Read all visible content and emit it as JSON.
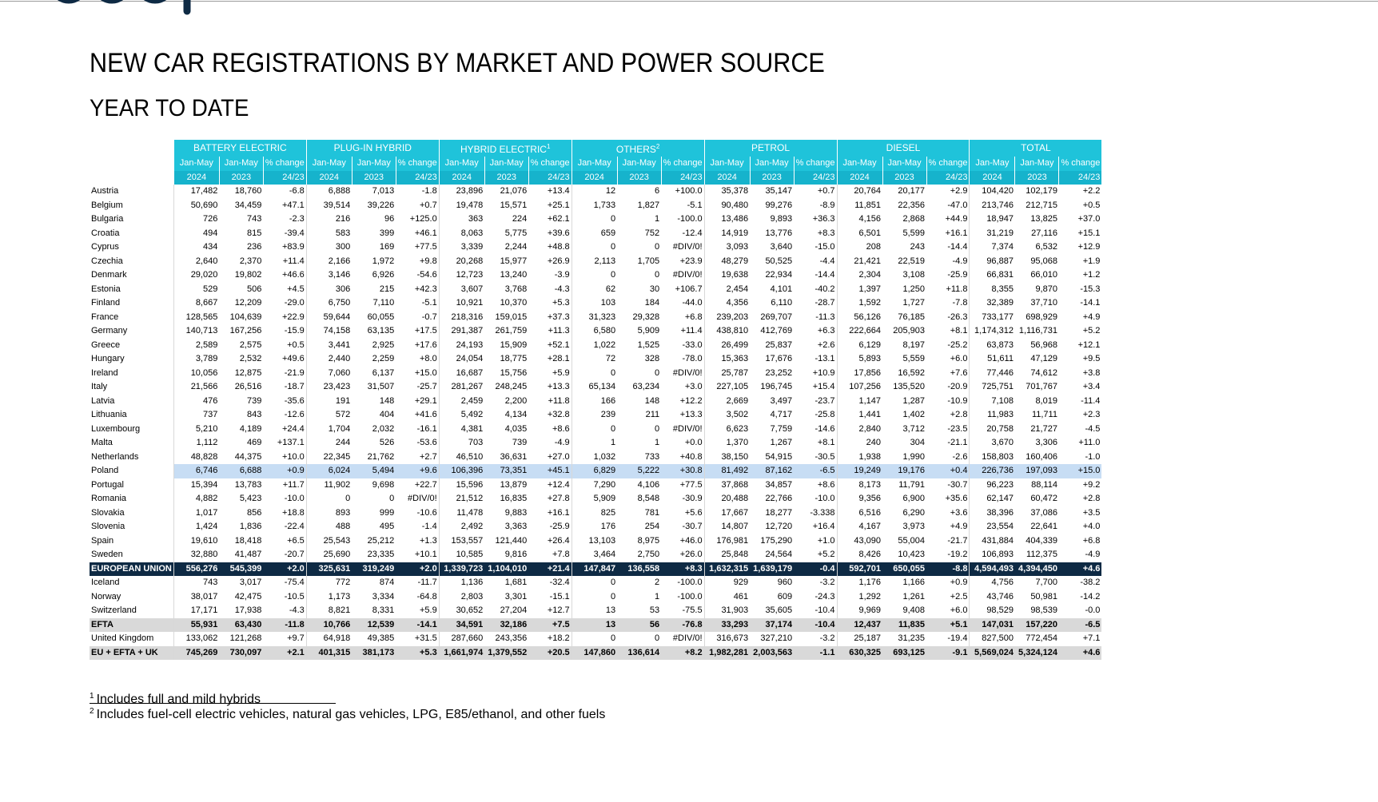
{
  "title": "NEW CAR REGISTRATIONS BY MARKET AND POWER SOURCE",
  "subtitle": "YEAR TO DATE",
  "groups": [
    "BATTERY ELECTRIC",
    "PLUG-IN HYBRID",
    "HYBRID ELECTRIC",
    "OTHERS",
    "PETROL",
    "DIESEL",
    "TOTAL"
  ],
  "group_sup": [
    "",
    "",
    "1",
    "2",
    "",
    "",
    ""
  ],
  "subheaders": {
    "period": "Jan-May",
    "change": "% change",
    "year_a": "2024",
    "year_b": "2023",
    "ratio": "24/23"
  },
  "rows": [
    {
      "name": "Austria",
      "v": [
        "17,482",
        "18,760",
        "-6.8",
        "6,888",
        "7,013",
        "-1.8",
        "23,896",
        "21,076",
        "+13.4",
        "12",
        "6",
        "+100.0",
        "35,378",
        "35,147",
        "+0.7",
        "20,764",
        "20,177",
        "+2.9",
        "104,420",
        "102,179",
        "+2.2"
      ]
    },
    {
      "name": "Belgium",
      "v": [
        "50,690",
        "34,459",
        "+47.1",
        "39,514",
        "39,226",
        "+0.7",
        "19,478",
        "15,571",
        "+25.1",
        "1,733",
        "1,827",
        "-5.1",
        "90,480",
        "99,276",
        "-8.9",
        "11,851",
        "22,356",
        "-47.0",
        "213,746",
        "212,715",
        "+0.5"
      ]
    },
    {
      "name": "Bulgaria",
      "v": [
        "726",
        "743",
        "-2.3",
        "216",
        "96",
        "+125.0",
        "363",
        "224",
        "+62.1",
        "0",
        "1",
        "-100.0",
        "13,486",
        "9,893",
        "+36.3",
        "4,156",
        "2,868",
        "+44.9",
        "18,947",
        "13,825",
        "+37.0"
      ]
    },
    {
      "name": "Croatia",
      "v": [
        "494",
        "815",
        "-39.4",
        "583",
        "399",
        "+46.1",
        "8,063",
        "5,775",
        "+39.6",
        "659",
        "752",
        "-12.4",
        "14,919",
        "13,776",
        "+8.3",
        "6,501",
        "5,599",
        "+16.1",
        "31,219",
        "27,116",
        "+15.1"
      ]
    },
    {
      "name": "Cyprus",
      "v": [
        "434",
        "236",
        "+83.9",
        "300",
        "169",
        "+77.5",
        "3,339",
        "2,244",
        "+48.8",
        "0",
        "0",
        "#DIV/0!",
        "3,093",
        "3,640",
        "-15.0",
        "208",
        "243",
        "-14.4",
        "7,374",
        "6,532",
        "+12.9"
      ]
    },
    {
      "name": "Czechia",
      "v": [
        "2,640",
        "2,370",
        "+11.4",
        "2,166",
        "1,972",
        "+9.8",
        "20,268",
        "15,977",
        "+26.9",
        "2,113",
        "1,705",
        "+23.9",
        "48,279",
        "50,525",
        "-4.4",
        "21,421",
        "22,519",
        "-4.9",
        "96,887",
        "95,068",
        "+1.9"
      ]
    },
    {
      "name": "Denmark",
      "v": [
        "29,020",
        "19,802",
        "+46.6",
        "3,146",
        "6,926",
        "-54.6",
        "12,723",
        "13,240",
        "-3.9",
        "0",
        "0",
        "#DIV/0!",
        "19,638",
        "22,934",
        "-14.4",
        "2,304",
        "3,108",
        "-25.9",
        "66,831",
        "66,010",
        "+1.2"
      ]
    },
    {
      "name": "Estonia",
      "v": [
        "529",
        "506",
        "+4.5",
        "306",
        "215",
        "+42.3",
        "3,607",
        "3,768",
        "-4.3",
        "62",
        "30",
        "+106.7",
        "2,454",
        "4,101",
        "-40.2",
        "1,397",
        "1,250",
        "+11.8",
        "8,355",
        "9,870",
        "-15.3"
      ]
    },
    {
      "name": "Finland",
      "v": [
        "8,667",
        "12,209",
        "-29.0",
        "6,750",
        "7,110",
        "-5.1",
        "10,921",
        "10,370",
        "+5.3",
        "103",
        "184",
        "-44.0",
        "4,356",
        "6,110",
        "-28.7",
        "1,592",
        "1,727",
        "-7.8",
        "32,389",
        "37,710",
        "-14.1"
      ]
    },
    {
      "name": "France",
      "v": [
        "128,565",
        "104,639",
        "+22.9",
        "59,644",
        "60,055",
        "-0.7",
        "218,316",
        "159,015",
        "+37.3",
        "31,323",
        "29,328",
        "+6.8",
        "239,203",
        "269,707",
        "-11.3",
        "56,126",
        "76,185",
        "-26.3",
        "733,177",
        "698,929",
        "+4.9"
      ]
    },
    {
      "name": "Germany",
      "v": [
        "140,713",
        "167,256",
        "-15.9",
        "74,158",
        "63,135",
        "+17.5",
        "291,387",
        "261,759",
        "+11.3",
        "6,580",
        "5,909",
        "+11.4",
        "438,810",
        "412,769",
        "+6.3",
        "222,664",
        "205,903",
        "+8.1",
        "1,174,312",
        "1,116,731",
        "+5.2"
      ]
    },
    {
      "name": "Greece",
      "v": [
        "2,589",
        "2,575",
        "+0.5",
        "3,441",
        "2,925",
        "+17.6",
        "24,193",
        "15,909",
        "+52.1",
        "1,022",
        "1,525",
        "-33.0",
        "26,499",
        "25,837",
        "+2.6",
        "6,129",
        "8,197",
        "-25.2",
        "63,873",
        "56,968",
        "+12.1"
      ]
    },
    {
      "name": "Hungary",
      "v": [
        "3,789",
        "2,532",
        "+49.6",
        "2,440",
        "2,259",
        "+8.0",
        "24,054",
        "18,775",
        "+28.1",
        "72",
        "328",
        "-78.0",
        "15,363",
        "17,676",
        "-13.1",
        "5,893",
        "5,559",
        "+6.0",
        "51,611",
        "47,129",
        "+9.5"
      ]
    },
    {
      "name": "Ireland",
      "v": [
        "10,056",
        "12,875",
        "-21.9",
        "7,060",
        "6,137",
        "+15.0",
        "16,687",
        "15,756",
        "+5.9",
        "0",
        "0",
        "#DIV/0!",
        "25,787",
        "23,252",
        "+10.9",
        "17,856",
        "16,592",
        "+7.6",
        "77,446",
        "74,612",
        "+3.8"
      ]
    },
    {
      "name": "Italy",
      "v": [
        "21,566",
        "26,516",
        "-18.7",
        "23,423",
        "31,507",
        "-25.7",
        "281,267",
        "248,245",
        "+13.3",
        "65,134",
        "63,234",
        "+3.0",
        "227,105",
        "196,745",
        "+15.4",
        "107,256",
        "135,520",
        "-20.9",
        "725,751",
        "701,767",
        "+3.4"
      ]
    },
    {
      "name": "Latvia",
      "v": [
        "476",
        "739",
        "-35.6",
        "191",
        "148",
        "+29.1",
        "2,459",
        "2,200",
        "+11.8",
        "166",
        "148",
        "+12.2",
        "2,669",
        "3,497",
        "-23.7",
        "1,147",
        "1,287",
        "-10.9",
        "7,108",
        "8,019",
        "-11.4"
      ]
    },
    {
      "name": "Lithuania",
      "v": [
        "737",
        "843",
        "-12.6",
        "572",
        "404",
        "+41.6",
        "5,492",
        "4,134",
        "+32.8",
        "239",
        "211",
        "+13.3",
        "3,502",
        "4,717",
        "-25.8",
        "1,441",
        "1,402",
        "+2.8",
        "11,983",
        "11,711",
        "+2.3"
      ]
    },
    {
      "name": "Luxembourg",
      "v": [
        "5,210",
        "4,189",
        "+24.4",
        "1,704",
        "2,032",
        "-16.1",
        "4,381",
        "4,035",
        "+8.6",
        "0",
        "0",
        "#DIV/0!",
        "6,623",
        "7,759",
        "-14.6",
        "2,840",
        "3,712",
        "-23.5",
        "20,758",
        "21,727",
        "-4.5"
      ]
    },
    {
      "name": "Malta",
      "v": [
        "1,112",
        "469",
        "+137.1",
        "244",
        "526",
        "-53.6",
        "703",
        "739",
        "-4.9",
        "1",
        "1",
        "+0.0",
        "1,370",
        "1,267",
        "+8.1",
        "240",
        "304",
        "-21.1",
        "3,670",
        "3,306",
        "+11.0"
      ]
    },
    {
      "name": "Netherlands",
      "v": [
        "48,828",
        "44,375",
        "+10.0",
        "22,345",
        "21,762",
        "+2.7",
        "46,510",
        "36,631",
        "+27.0",
        "1,032",
        "733",
        "+40.8",
        "38,150",
        "54,915",
        "-30.5",
        "1,938",
        "1,990",
        "-2.6",
        "158,803",
        "160,406",
        "-1.0"
      ]
    },
    {
      "name": "Poland",
      "hl": true,
      "v": [
        "6,746",
        "6,688",
        "+0.9",
        "6,024",
        "5,494",
        "+9.6",
        "106,396",
        "73,351",
        "+45.1",
        "6,829",
        "5,222",
        "+30.8",
        "81,492",
        "87,162",
        "-6.5",
        "19,249",
        "19,176",
        "+0.4",
        "226,736",
        "197,093",
        "+15.0"
      ]
    },
    {
      "name": "Portugal",
      "v": [
        "15,394",
        "13,783",
        "+11.7",
        "11,902",
        "9,698",
        "+22.7",
        "15,596",
        "13,879",
        "+12.4",
        "7,290",
        "4,106",
        "+77.5",
        "37,868",
        "34,857",
        "+8.6",
        "8,173",
        "11,791",
        "-30.7",
        "96,223",
        "88,114",
        "+9.2"
      ]
    },
    {
      "name": "Romania",
      "v": [
        "4,882",
        "5,423",
        "-10.0",
        "0",
        "0",
        "#DIV/0!",
        "21,512",
        "16,835",
        "+27.8",
        "5,909",
        "8,548",
        "-30.9",
        "20,488",
        "22,766",
        "-10.0",
        "9,356",
        "6,900",
        "+35.6",
        "62,147",
        "60,472",
        "+2.8"
      ]
    },
    {
      "name": "Slovakia",
      "v": [
        "1,017",
        "856",
        "+18.8",
        "893",
        "999",
        "-10.6",
        "11,478",
        "9,883",
        "+16.1",
        "825",
        "781",
        "+5.6",
        "17,667",
        "18,277",
        "-3.338",
        "6,516",
        "6,290",
        "+3.6",
        "38,396",
        "37,086",
        "+3.5"
      ]
    },
    {
      "name": "Slovenia",
      "v": [
        "1,424",
        "1,836",
        "-22.4",
        "488",
        "495",
        "-1.4",
        "2,492",
        "3,363",
        "-25.9",
        "176",
        "254",
        "-30.7",
        "14,807",
        "12,720",
        "+16.4",
        "4,167",
        "3,973",
        "+4.9",
        "23,554",
        "22,641",
        "+4.0"
      ]
    },
    {
      "name": "Spain",
      "v": [
        "19,610",
        "18,418",
        "+6.5",
        "25,543",
        "25,212",
        "+1.3",
        "153,557",
        "121,440",
        "+26.4",
        "13,103",
        "8,975",
        "+46.0",
        "176,981",
        "175,290",
        "+1.0",
        "43,090",
        "55,004",
        "-21.7",
        "431,884",
        "404,339",
        "+6.8"
      ]
    },
    {
      "name": "Sweden",
      "v": [
        "32,880",
        "41,487",
        "-20.7",
        "25,690",
        "23,335",
        "+10.1",
        "10,585",
        "9,816",
        "+7.8",
        "3,464",
        "2,750",
        "+26.0",
        "25,848",
        "24,564",
        "+5.2",
        "8,426",
        "10,423",
        "-19.2",
        "106,893",
        "112,375",
        "-4.9"
      ]
    },
    {
      "name": "EUROPEAN UNION",
      "kind": "eu",
      "v": [
        "556,276",
        "545,399",
        "+2.0",
        "325,631",
        "319,249",
        "+2.0",
        "1,339,723",
        "1,104,010",
        "+21.4",
        "147,847",
        "136,558",
        "+8.3",
        "1,632,315",
        "1,639,179",
        "-0.4",
        "592,701",
        "650,055",
        "-8.8",
        "4,594,493",
        "4,394,450",
        "+4.6"
      ]
    },
    {
      "name": "Iceland",
      "v": [
        "743",
        "3,017",
        "-75.4",
        "772",
        "874",
        "-11.7",
        "1,136",
        "1,681",
        "-32.4",
        "0",
        "2",
        "-100.0",
        "929",
        "960",
        "-3.2",
        "1,176",
        "1,166",
        "+0.9",
        "4,756",
        "7,700",
        "-38.2"
      ]
    },
    {
      "name": "Norway",
      "v": [
        "38,017",
        "42,475",
        "-10.5",
        "1,173",
        "3,334",
        "-64.8",
        "2,803",
        "3,301",
        "-15.1",
        "0",
        "1",
        "-100.0",
        "461",
        "609",
        "-24.3",
        "1,292",
        "1,261",
        "+2.5",
        "43,746",
        "50,981",
        "-14.2"
      ]
    },
    {
      "name": "Switzerland",
      "v": [
        "17,171",
        "17,938",
        "-4.3",
        "8,821",
        "8,331",
        "+5.9",
        "30,652",
        "27,204",
        "+12.7",
        "13",
        "53",
        "-75.5",
        "31,903",
        "35,605",
        "-10.4",
        "9,969",
        "9,408",
        "+6.0",
        "98,529",
        "98,539",
        "-0.0"
      ]
    },
    {
      "name": "EFTA",
      "kind": "grey",
      "v": [
        "55,931",
        "63,430",
        "-11.8",
        "10,766",
        "12,539",
        "-14.1",
        "34,591",
        "32,186",
        "+7.5",
        "13",
        "56",
        "-76.8",
        "33,293",
        "37,174",
        "-10.4",
        "12,437",
        "11,835",
        "+5.1",
        "147,031",
        "157,220",
        "-6.5"
      ]
    },
    {
      "name": "United Kingdom",
      "v": [
        "133,062",
        "121,268",
        "+9.7",
        "64,918",
        "49,385",
        "+31.5",
        "287,660",
        "243,356",
        "+18.2",
        "0",
        "0",
        "#DIV/0!",
        "316,673",
        "327,210",
        "-3.2",
        "25,187",
        "31,235",
        "-19.4",
        "827,500",
        "772,454",
        "+7.1"
      ]
    },
    {
      "name": "EU + EFTA + UK",
      "kind": "grey",
      "v": [
        "745,269",
        "730,097",
        "+2.1",
        "401,315",
        "381,173",
        "+5.3",
        "1,661,974",
        "1,379,552",
        "+20.5",
        "147,860",
        "136,614",
        "+8.2",
        "1,982,281",
        "2,003,563",
        "-1.1",
        "630,325",
        "693,125",
        "-9.1",
        "5,569,024",
        "5,324,124",
        "+4.6"
      ]
    }
  ],
  "footnotes": [
    {
      "mark": "1",
      "text": "Includes full and mild hybrids"
    },
    {
      "mark": "2",
      "text": "Includes fuel-cell electric vehicles, natural gas vehicles, LPG, E85/ethanol, and other fuels"
    }
  ],
  "colors": {
    "header": "#1fc3da",
    "eu_row": "#0e2a44",
    "highlight": "#c7ddf4",
    "subtotal": "#d9d9d9"
  }
}
